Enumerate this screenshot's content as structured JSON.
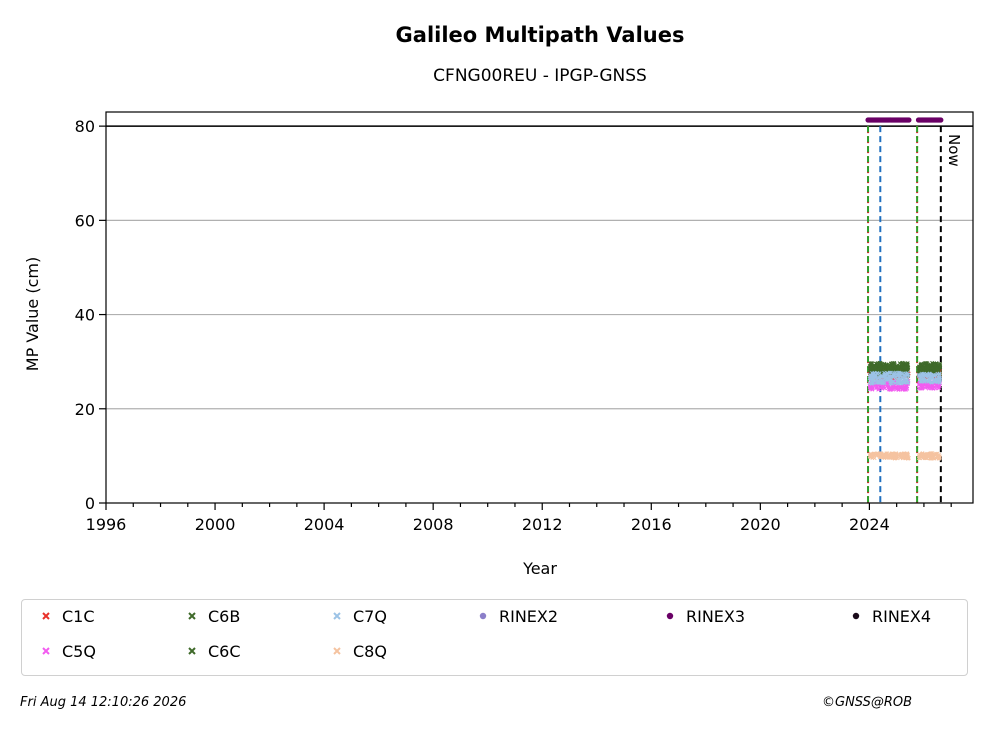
{
  "chart_data": {
    "type": "scatter",
    "title": "Galileo Multipath Values",
    "subtitle": "CFNG00REU - IPGP-GNSS",
    "xlabel": "Year",
    "ylabel": "MP Value (cm)",
    "xlim": [
      1996,
      2027.8
    ],
    "ylim": [
      0,
      83
    ],
    "xticks": [
      1996,
      2000,
      2004,
      2008,
      2012,
      2016,
      2020,
      2024
    ],
    "yticks": [
      0,
      20,
      40,
      60,
      80
    ],
    "grid": "y",
    "hline": 80,
    "now_label": "Now",
    "vlines": [
      {
        "x": 2023.95,
        "color": "#d62728",
        "style": "dotted"
      },
      {
        "x": 2023.95,
        "color": "#2ca02c",
        "style": "dashed"
      },
      {
        "x": 2024.4,
        "color": "#1f6fbf",
        "style": "dashed"
      },
      {
        "x": 2025.75,
        "color": "#d62728",
        "style": "dotted"
      },
      {
        "x": 2025.75,
        "color": "#2ca02c",
        "style": "dashed"
      },
      {
        "x": 2026.62,
        "color": "#000000",
        "style": "dashed"
      }
    ],
    "series": [
      {
        "name": "C1C",
        "color": "#e8312a",
        "marker": "x",
        "segments": [
          [
            2024.0,
            2025.45,
            27.5,
            1.2
          ],
          [
            2025.8,
            2026.6,
            27.5,
            1.0
          ]
        ]
      },
      {
        "name": "C5Q",
        "color": "#f25cf0",
        "marker": "x",
        "segments": [
          [
            2024.0,
            2025.45,
            25.0,
            1.0
          ],
          [
            2025.8,
            2026.6,
            25.0,
            0.8
          ]
        ]
      },
      {
        "name": "C6B",
        "color": "#3f6a2a",
        "marker": "x",
        "segments": [
          [
            2024.0,
            2025.45,
            29.0,
            0.8
          ],
          [
            2025.8,
            2026.6,
            29.2,
            0.6
          ]
        ]
      },
      {
        "name": "C6C",
        "color": "#3f6a2a",
        "marker": "x",
        "segments": [
          [
            2024.0,
            2025.45,
            28.0,
            1.0
          ],
          [
            2025.8,
            2026.6,
            28.0,
            0.8
          ]
        ]
      },
      {
        "name": "C7Q",
        "color": "#9cc3e6",
        "marker": "x",
        "segments": [
          [
            2024.0,
            2025.45,
            26.5,
            1.2
          ],
          [
            2025.8,
            2026.6,
            26.5,
            1.0
          ]
        ]
      },
      {
        "name": "C8Q",
        "color": "#f5c3a0",
        "marker": "x",
        "segments": [
          [
            2024.0,
            2025.45,
            10.0,
            0.6
          ],
          [
            2025.8,
            2026.6,
            10.0,
            0.6
          ]
        ]
      },
      {
        "name": "RINEX2",
        "color": "#8b7fc9",
        "marker": "dot",
        "segments": []
      },
      {
        "name": "RINEX3",
        "color": "#6a0066",
        "marker": "dot",
        "segments": [
          [
            2023.95,
            2025.45,
            81.3,
            0
          ],
          [
            2025.8,
            2026.62,
            81.3,
            0
          ]
        ]
      },
      {
        "name": "RINEX4",
        "color": "#1a0a1a",
        "marker": "dot",
        "segments": []
      }
    ]
  },
  "footer": {
    "timestamp": "Fri Aug 14 12:10:26 2026",
    "copyright": "©GNSS@ROB"
  }
}
